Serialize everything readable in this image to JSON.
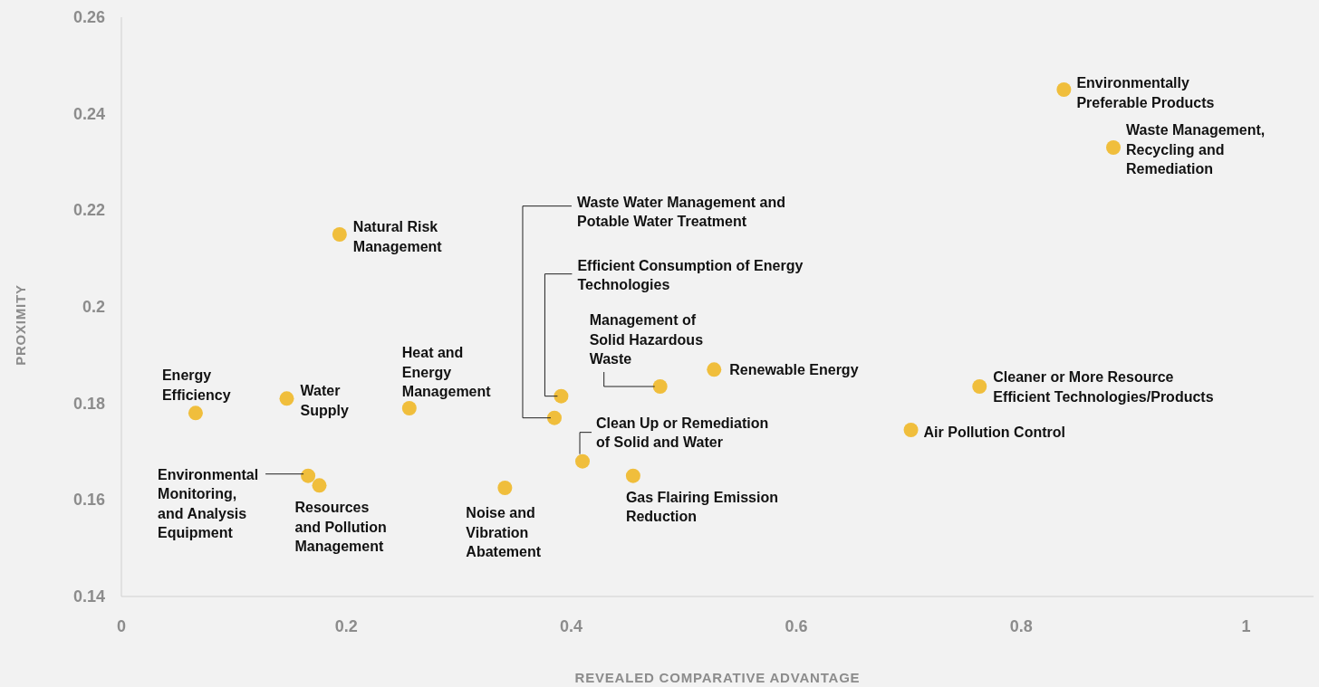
{
  "chart_data": {
    "type": "scatter",
    "xlabel": "REVEALED COMPARATIVE ADVANTAGE",
    "ylabel": "PROXIMITY",
    "xlim": [
      0,
      1.06
    ],
    "xticks": [
      0,
      0.2,
      0.4,
      0.6,
      0.8,
      1
    ],
    "ylim": [
      0.14,
      0.26
    ],
    "yticks": [
      0.14,
      0.16,
      0.18,
      0.2,
      0.22,
      0.24,
      0.26
    ],
    "grid": false,
    "marker": "circle",
    "series": [
      {
        "color": "#f0be3c",
        "x": [
          0.838,
          0.882,
          0.194,
          0.066,
          0.147,
          0.256,
          0.166,
          0.176,
          0.341,
          0.385,
          0.391,
          0.41,
          0.479,
          0.527,
          0.455,
          0.763,
          0.702
        ],
        "values": [
          0.245,
          0.233,
          0.215,
          0.178,
          0.181,
          0.179,
          0.165,
          0.163,
          0.1625,
          0.177,
          0.1815,
          0.168,
          0.1835,
          0.187,
          0.165,
          0.1835,
          0.1745
        ]
      }
    ],
    "annotations": [
      {
        "text": "Environmentally\nPreferable Products",
        "x": 0.838,
        "y": 0.245
      },
      {
        "text": "Waste Management,\nRecycling and\nRemediation",
        "x": 0.882,
        "y": 0.233
      },
      {
        "text": "Natural Risk\nManagement",
        "x": 0.194,
        "y": 0.215
      },
      {
        "text": "Energy\nEfficiency",
        "x": 0.066,
        "y": 0.178
      },
      {
        "text": "Water\nSupply",
        "x": 0.147,
        "y": 0.181
      },
      {
        "text": "Heat and\nEnergy\nManagement",
        "x": 0.256,
        "y": 0.179
      },
      {
        "text": "Environmental\nMonitoring,\nand Analysis\nEquipment",
        "x": 0.166,
        "y": 0.165
      },
      {
        "text": "Resources\nand Pollution\nManagement",
        "x": 0.176,
        "y": 0.163
      },
      {
        "text": "Noise and\nVibration\nAbatement",
        "x": 0.341,
        "y": 0.1625
      },
      {
        "text": "Waste Water Management and\nPotable Water Treatment",
        "x": 0.385,
        "y": 0.177
      },
      {
        "text": "Efficient Consumption of Energy\nTechnologies",
        "x": 0.391,
        "y": 0.1815
      },
      {
        "text": "Clean Up or Remediation\nof Solid and Water",
        "x": 0.41,
        "y": 0.168
      },
      {
        "text": "Management of\nSolid Hazardous\nWaste",
        "x": 0.479,
        "y": 0.1835
      },
      {
        "text": "Renewable Energy",
        "x": 0.527,
        "y": 0.187
      },
      {
        "text": "Gas Flairing Emission\nReduction",
        "x": 0.455,
        "y": 0.165
      },
      {
        "text": "Cleaner or More Resource\nEfficient Technologies/Products",
        "x": 0.763,
        "y": 0.1835
      },
      {
        "text": "Air Pollution Control",
        "x": 0.702,
        "y": 0.1745
      }
    ]
  }
}
